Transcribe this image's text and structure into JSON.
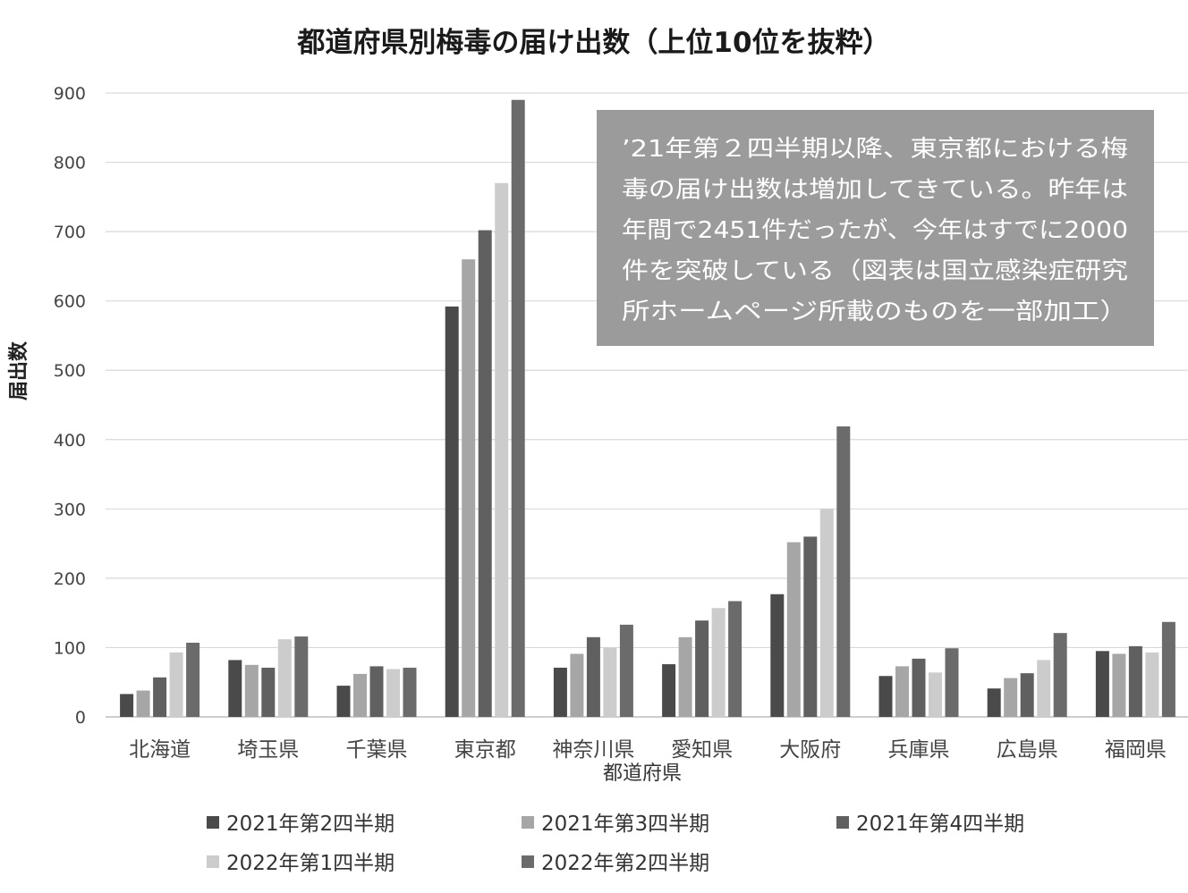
{
  "chart_data": {
    "type": "bar",
    "title": "都道府県別梅毒の届け出数（上位10位を抜粋）",
    "xlabel": "都道府県",
    "ylabel": "届出数",
    "ylim": [
      0,
      900
    ],
    "yticks": [
      0,
      100,
      200,
      300,
      400,
      500,
      600,
      700,
      800,
      900
    ],
    "grid": true,
    "legend_position": "bottom",
    "categories": [
      "北海道",
      "埼玉県",
      "千葉県",
      "東京都",
      "神奈川県",
      "愛知県",
      "大阪府",
      "兵庫県",
      "広島県",
      "福岡県"
    ],
    "series": [
      {
        "name": "2021年第2四半期",
        "color": "#4a4a4a",
        "values": [
          33,
          82,
          45,
          592,
          71,
          76,
          177,
          59,
          41,
          95
        ]
      },
      {
        "name": "2021年第3四半期",
        "color": "#a6a6a6",
        "values": [
          38,
          75,
          62,
          660,
          91,
          115,
          252,
          73,
          56,
          91
        ]
      },
      {
        "name": "2021年第4四半期",
        "color": "#606060",
        "values": [
          57,
          71,
          73,
          702,
          115,
          139,
          260,
          84,
          63,
          102
        ]
      },
      {
        "name": "2022年第1四半期",
        "color": "#cccccc",
        "values": [
          93,
          112,
          69,
          770,
          100,
          157,
          300,
          64,
          82,
          93
        ]
      },
      {
        "name": "2022年第2四半期",
        "color": "#6b6b6b",
        "values": [
          107,
          116,
          71,
          890,
          133,
          167,
          419,
          99,
          121,
          137
        ]
      }
    ],
    "annotation": {
      "background": "#9b9b9b",
      "lines": [
        "’21年第２四半期以降、東京都における梅",
        "毒の届け出数は増加してきている。昨年は",
        "年間で2451件だったが、今年はすでに2000",
        "件を突破している（図表は国立感染症研究",
        "所ホームページ所載のものを一部加工）"
      ]
    }
  }
}
